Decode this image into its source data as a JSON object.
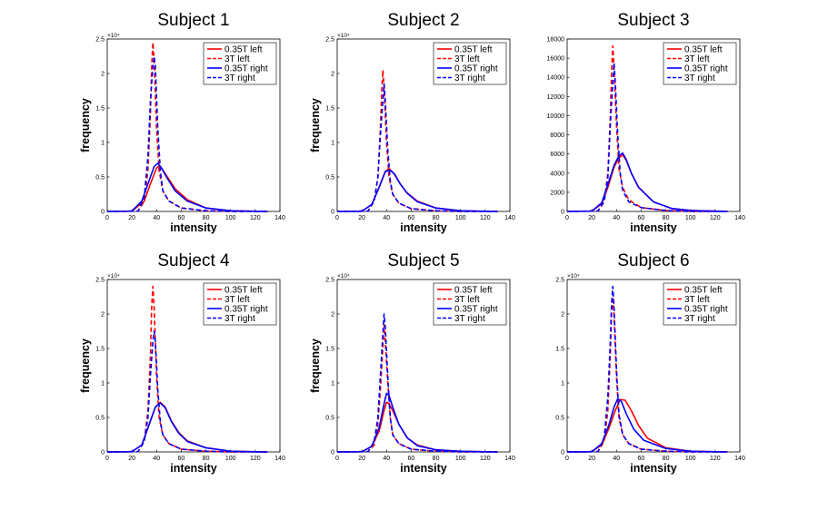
{
  "chart_data": [
    {
      "type": "line",
      "title": "Subject 1",
      "xlabel": "intensity",
      "ylabel": "frequency",
      "xlim": [
        0,
        140
      ],
      "ylim": [
        0,
        25000
      ],
      "xticks": [
        "0",
        "20",
        "40",
        "60",
        "80",
        "100",
        "120",
        "140"
      ],
      "yticks": [
        "0",
        "0.5",
        "1",
        "1.5",
        "2",
        "2.5"
      ],
      "y_multiplier": "×10⁴",
      "legend": {
        "placement": "top-right"
      },
      "series": [
        {
          "name": "0.35T left",
          "color": "#ff0000",
          "dash": "solid",
          "x": [
            0,
            20,
            30,
            35,
            40,
            42,
            44,
            48,
            55,
            65,
            80,
            100,
            120,
            130
          ],
          "y": [
            0,
            30,
            1500,
            4000,
            6300,
            6600,
            6300,
            5200,
            3300,
            1700,
            500,
            100,
            30,
            0
          ]
        },
        {
          "name": "3T left",
          "color": "#ff0000",
          "dash": "dashed",
          "x": [
            0,
            25,
            30,
            33,
            35,
            36,
            37,
            38,
            40,
            42,
            45,
            50,
            60,
            80,
            100,
            130
          ],
          "y": [
            0,
            50,
            1500,
            6000,
            14000,
            21000,
            24500,
            22000,
            12000,
            6000,
            3000,
            1500,
            500,
            100,
            0,
            0
          ]
        },
        {
          "name": "0.35T right",
          "color": "#0000ff",
          "dash": "solid",
          "x": [
            0,
            20,
            28,
            33,
            38,
            41,
            44,
            48,
            55,
            65,
            80,
            100,
            120,
            130
          ],
          "y": [
            0,
            50,
            1500,
            4000,
            6500,
            7000,
            6300,
            5000,
            3000,
            1500,
            500,
            100,
            30,
            0
          ]
        },
        {
          "name": "3T right",
          "color": "#0000ff",
          "dash": "dashed",
          "x": [
            0,
            25,
            30,
            33,
            35,
            37,
            38,
            39,
            41,
            43,
            45,
            50,
            60,
            80,
            100,
            130
          ],
          "y": [
            0,
            50,
            2000,
            8000,
            16000,
            21000,
            22500,
            21000,
            12000,
            6000,
            3000,
            1500,
            500,
            100,
            0,
            0
          ]
        }
      ]
    },
    {
      "type": "line",
      "title": "Subject 2",
      "xlabel": "intensity",
      "ylabel": "frequency",
      "xlim": [
        0,
        140
      ],
      "ylim": [
        0,
        25000
      ],
      "xticks": [
        "0",
        "20",
        "40",
        "60",
        "80",
        "100",
        "120",
        "140"
      ],
      "yticks": [
        "0",
        "0.5",
        "1",
        "1.5",
        "2",
        "2.5"
      ],
      "y_multiplier": "×10⁴",
      "legend": {
        "placement": "top-right"
      },
      "series": [
        {
          "name": "0.35T left",
          "color": "#ff0000",
          "dash": "solid",
          "x": [
            0,
            20,
            28,
            34,
            39,
            42,
            46,
            50,
            56,
            65,
            80,
            100,
            120,
            130
          ],
          "y": [
            0,
            30,
            1000,
            3500,
            5800,
            6200,
            5500,
            4300,
            2800,
            1500,
            500,
            100,
            30,
            0
          ]
        },
        {
          "name": "3T left",
          "color": "#ff0000",
          "dash": "dashed",
          "x": [
            0,
            25,
            30,
            33,
            35,
            36,
            37,
            38,
            40,
            42,
            45,
            50,
            60,
            80,
            100,
            130
          ],
          "y": [
            0,
            50,
            1500,
            5000,
            12000,
            17000,
            20500,
            18000,
            10000,
            5000,
            2500,
            1200,
            400,
            100,
            0,
            0
          ]
        },
        {
          "name": "0.35T right",
          "color": "#0000ff",
          "dash": "solid",
          "x": [
            0,
            20,
            28,
            34,
            39,
            43,
            47,
            51,
            57,
            65,
            80,
            100,
            120,
            130
          ],
          "y": [
            0,
            30,
            1000,
            3500,
            5800,
            6000,
            5300,
            4000,
            2600,
            1400,
            500,
            100,
            30,
            0
          ]
        },
        {
          "name": "3T right",
          "color": "#0000ff",
          "dash": "dashed",
          "x": [
            0,
            25,
            30,
            33,
            35,
            37,
            38,
            39,
            41,
            43,
            45,
            50,
            60,
            80,
            100,
            130
          ],
          "y": [
            0,
            50,
            1500,
            5000,
            11000,
            16000,
            18500,
            16000,
            9000,
            4500,
            2500,
            1200,
            400,
            100,
            0,
            0
          ]
        }
      ]
    },
    {
      "type": "line",
      "title": "Subject 3",
      "xlabel": "intensity",
      "ylabel": "",
      "xlim": [
        0,
        140
      ],
      "ylim": [
        0,
        18000
      ],
      "xticks": [
        "0",
        "20",
        "40",
        "60",
        "80",
        "100",
        "120",
        "140"
      ],
      "yticks": [
        "0",
        "2000",
        "4000",
        "6000",
        "8000",
        "10000",
        "12000",
        "14000",
        "16000",
        "18000"
      ],
      "y_multiplier": "",
      "legend": {
        "placement": "top-right"
      },
      "series": [
        {
          "name": "0.35T left",
          "color": "#ff0000",
          "dash": "solid",
          "x": [
            0,
            20,
            28,
            33,
            38,
            42,
            45,
            48,
            52,
            58,
            70,
            85,
            100,
            120,
            130
          ],
          "y": [
            0,
            30,
            800,
            2500,
            4600,
            5600,
            5900,
            5300,
            4000,
            2500,
            1000,
            300,
            100,
            30,
            0
          ]
        },
        {
          "name": "3T left",
          "color": "#ff0000",
          "dash": "dashed",
          "x": [
            0,
            25,
            30,
            33,
            35,
            36,
            37,
            38,
            40,
            42,
            45,
            50,
            60,
            80,
            100,
            130
          ],
          "y": [
            0,
            50,
            1000,
            4000,
            10000,
            14500,
            17300,
            15000,
            9000,
            4500,
            2500,
            1200,
            400,
            100,
            0,
            0
          ]
        },
        {
          "name": "0.35T right",
          "color": "#0000ff",
          "dash": "solid",
          "x": [
            0,
            20,
            28,
            33,
            38,
            42,
            45,
            48,
            52,
            58,
            70,
            85,
            100,
            120,
            130
          ],
          "y": [
            0,
            30,
            900,
            2800,
            4800,
            5800,
            6100,
            5400,
            4000,
            2500,
            1000,
            300,
            100,
            30,
            0
          ]
        },
        {
          "name": "3T right",
          "color": "#0000ff",
          "dash": "dashed",
          "x": [
            0,
            25,
            30,
            33,
            35,
            37,
            38,
            39,
            41,
            43,
            45,
            50,
            60,
            80,
            100,
            130
          ],
          "y": [
            0,
            50,
            1000,
            3500,
            9000,
            13500,
            15500,
            13500,
            8000,
            4000,
            2200,
            1000,
            400,
            100,
            0,
            0
          ]
        }
      ]
    },
    {
      "type": "line",
      "title": "Subject 4",
      "xlabel": "intensity",
      "ylabel": "frequency",
      "xlim": [
        0,
        140
      ],
      "ylim": [
        0,
        25000
      ],
      "xticks": [
        "0",
        "20",
        "40",
        "60",
        "80",
        "100",
        "120",
        "140"
      ],
      "yticks": [
        "0",
        "0.5",
        "1",
        "1.5",
        "2",
        "2.5"
      ],
      "y_multiplier": "×10⁴",
      "legend": {
        "placement": "top-right"
      },
      "series": [
        {
          "name": "0.35T left",
          "color": "#ff0000",
          "dash": "solid",
          "x": [
            0,
            20,
            28,
            34,
            39,
            43,
            47,
            52,
            58,
            65,
            80,
            100,
            120,
            130
          ],
          "y": [
            0,
            30,
            1000,
            4000,
            6500,
            7200,
            6500,
            4500,
            2800,
            1600,
            600,
            100,
            30,
            0
          ]
        },
        {
          "name": "3T left",
          "color": "#ff0000",
          "dash": "dashed",
          "x": [
            0,
            25,
            30,
            33,
            35,
            36,
            37,
            38,
            40,
            42,
            45,
            50,
            60,
            80,
            100,
            130
          ],
          "y": [
            0,
            50,
            1500,
            6000,
            14000,
            21000,
            24000,
            21000,
            11000,
            5000,
            2500,
            1200,
            400,
            100,
            0,
            0
          ]
        },
        {
          "name": "0.35T right",
          "color": "#0000ff",
          "dash": "solid",
          "x": [
            0,
            20,
            28,
            34,
            39,
            43,
            47,
            52,
            58,
            65,
            80,
            100,
            120,
            130
          ],
          "y": [
            0,
            30,
            1000,
            4000,
            6500,
            7100,
            6400,
            4400,
            2700,
            1500,
            600,
            100,
            30,
            0
          ]
        },
        {
          "name": "3T right",
          "color": "#0000ff",
          "dash": "dashed",
          "x": [
            0,
            25,
            30,
            33,
            35,
            37,
            38,
            39,
            41,
            43,
            45,
            50,
            60,
            80,
            100,
            130
          ],
          "y": [
            0,
            50,
            1500,
            5000,
            11000,
            16000,
            17500,
            16000,
            9000,
            4500,
            2500,
            1200,
            400,
            100,
            0,
            0
          ]
        }
      ]
    },
    {
      "type": "line",
      "title": "Subject 5",
      "xlabel": "intensity",
      "ylabel": "frequency",
      "xlim": [
        0,
        140
      ],
      "ylim": [
        0,
        25000
      ],
      "xticks": [
        "0",
        "20",
        "40",
        "60",
        "80",
        "100",
        "120",
        "140"
      ],
      "yticks": [
        "0",
        "0.5",
        "1",
        "1.5",
        "2",
        "2.5"
      ],
      "y_multiplier": "×10⁴",
      "legend": {
        "placement": "top-right"
      },
      "series": [
        {
          "name": "0.35T left",
          "color": "#ff0000",
          "dash": "solid",
          "x": [
            0,
            20,
            28,
            34,
            38,
            40,
            42,
            45,
            50,
            57,
            65,
            80,
            100,
            120,
            130
          ],
          "y": [
            0,
            30,
            800,
            3000,
            6000,
            7200,
            7000,
            6000,
            4000,
            2000,
            1000,
            300,
            100,
            30,
            0
          ]
        },
        {
          "name": "3T left",
          "color": "#ff0000",
          "dash": "dashed",
          "x": [
            0,
            25,
            30,
            33,
            35,
            37,
            38,
            39,
            41,
            43,
            45,
            50,
            60,
            80,
            100,
            130
          ],
          "y": [
            0,
            50,
            1000,
            4000,
            9000,
            15000,
            18500,
            16000,
            10000,
            5000,
            2500,
            1200,
            400,
            100,
            0,
            0
          ]
        },
        {
          "name": "0.35T right",
          "color": "#0000ff",
          "dash": "solid",
          "x": [
            0,
            20,
            28,
            34,
            38,
            40,
            42,
            45,
            50,
            57,
            65,
            80,
            100,
            120,
            130
          ],
          "y": [
            0,
            30,
            800,
            3500,
            7000,
            8500,
            8200,
            6500,
            4000,
            2000,
            900,
            300,
            100,
            30,
            0
          ]
        },
        {
          "name": "3T right",
          "color": "#0000ff",
          "dash": "dashed",
          "x": [
            0,
            25,
            30,
            33,
            35,
            37,
            38,
            39,
            41,
            43,
            45,
            50,
            60,
            80,
            100,
            130
          ],
          "y": [
            0,
            50,
            1500,
            5000,
            11000,
            17000,
            20000,
            18000,
            11000,
            5000,
            2500,
            1200,
            400,
            100,
            0,
            0
          ]
        }
      ]
    },
    {
      "type": "line",
      "title": "Subject 6",
      "xlabel": "intensity",
      "ylabel": "",
      "xlim": [
        0,
        140
      ],
      "ylim": [
        0,
        25000
      ],
      "xticks": [
        "0",
        "20",
        "40",
        "60",
        "80",
        "100",
        "120",
        "140"
      ],
      "yticks": [
        "0",
        "0.5",
        "1",
        "1.5",
        "2",
        "2.5"
      ],
      "y_multiplier": "×10⁴",
      "legend": {
        "placement": "top-right"
      },
      "series": [
        {
          "name": "0.35T left",
          "color": "#ff0000",
          "dash": "solid",
          "x": [
            0,
            20,
            28,
            34,
            39,
            43,
            47,
            52,
            58,
            65,
            80,
            100,
            120,
            130
          ],
          "y": [
            0,
            30,
            1000,
            3500,
            6000,
            7600,
            7500,
            6000,
            3800,
            2000,
            600,
            100,
            30,
            0
          ]
        },
        {
          "name": "3T left",
          "color": "#ff0000",
          "dash": "dashed",
          "x": [
            0,
            25,
            30,
            33,
            35,
            36,
            37,
            38,
            40,
            42,
            45,
            50,
            60,
            80,
            100,
            130
          ],
          "y": [
            0,
            50,
            1500,
            6000,
            14000,
            20000,
            22500,
            20000,
            11000,
            5000,
            2500,
            1200,
            400,
            100,
            0,
            0
          ]
        },
        {
          "name": "0.35T right",
          "color": "#0000ff",
          "dash": "solid",
          "x": [
            0,
            20,
            28,
            34,
            38,
            41,
            44,
            48,
            54,
            62,
            80,
            100,
            120,
            130
          ],
          "y": [
            0,
            30,
            1200,
            4000,
            6500,
            7700,
            7300,
            5500,
            3300,
            1700,
            500,
            100,
            30,
            0
          ]
        },
        {
          "name": "3T right",
          "color": "#0000ff",
          "dash": "dashed",
          "x": [
            0,
            25,
            30,
            33,
            35,
            36,
            37,
            38,
            40,
            42,
            45,
            50,
            60,
            80,
            100,
            130
          ],
          "y": [
            0,
            50,
            2000,
            8000,
            16000,
            21500,
            24000,
            21000,
            12000,
            5500,
            2500,
            1200,
            400,
            100,
            0,
            0
          ]
        }
      ]
    }
  ]
}
